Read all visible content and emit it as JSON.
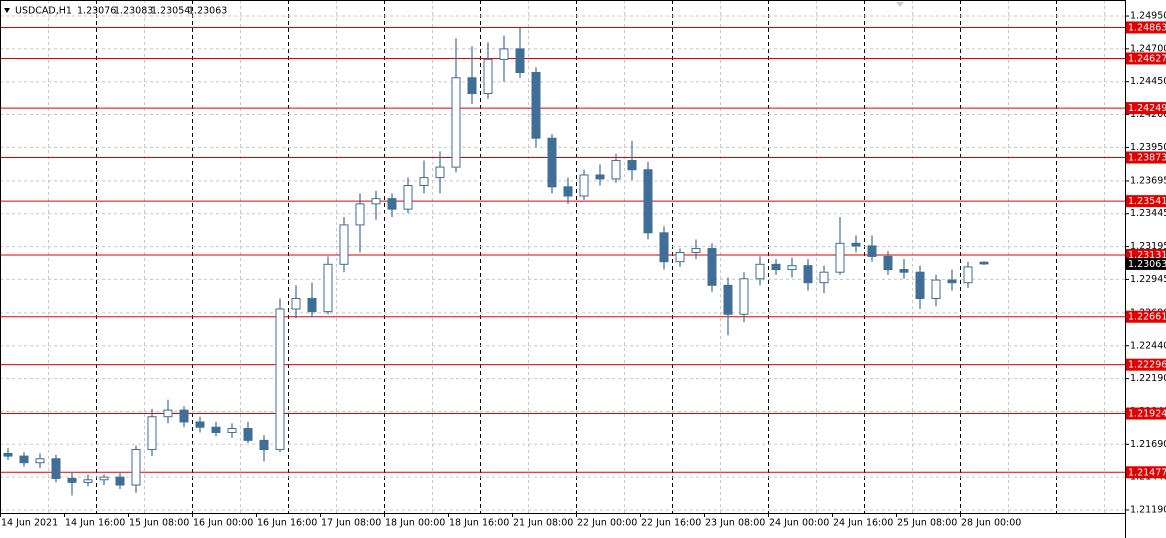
{
  "chart_data": {
    "type": "candlestick",
    "title": "USDCAD,H1",
    "categories": [
      "14 Jun 2021",
      null,
      null,
      null,
      "14 Jun 16:00",
      null,
      null,
      null,
      "15 Jun 08:00",
      null,
      null,
      null,
      "16 Jun 00:00",
      null,
      null,
      null,
      "16 Jun 16:00",
      null,
      null,
      null,
      "17 Jun 08:00",
      null,
      null,
      null,
      "18 Jun 00:00",
      null,
      null,
      null,
      "18 Jun 16:00",
      null,
      null,
      null,
      "21 Jun 08:00",
      null,
      null,
      null,
      "22 Jun 00:00",
      null,
      null,
      null,
      "22 Jun 16:00",
      null,
      null,
      null,
      "23 Jun 08:00",
      null,
      null,
      null,
      "24 Jun 00:00",
      null,
      null,
      null,
      "24 Jun 16:00",
      null,
      null,
      null,
      "25 Jun 08:00",
      null,
      null,
      null,
      "28 Jun 00:00",
      null
    ],
    "open": [
      1.2162,
      1.216,
      1.2155,
      1.2158,
      1.2143,
      1.214,
      1.2142,
      1.2144,
      1.2138,
      1.2165,
      1.219,
      1.2195,
      1.2186,
      1.2182,
      1.2178,
      1.2181,
      1.2172,
      1.2165,
      1.2272,
      1.228,
      1.227,
      1.2306,
      1.2336,
      1.2352,
      1.2356,
      1.2348,
      1.2366,
      1.2372,
      1.238,
      1.2448,
      1.2436,
      1.2462,
      1.247,
      1.2452,
      1.2402,
      1.2365,
      1.2358,
      1.2374,
      1.2371,
      1.2385,
      1.2378,
      1.233,
      1.2308,
      1.2315,
      1.2318,
      1.229,
      1.2268,
      1.2295,
      1.2306,
      1.2302,
      1.2305,
      1.2292,
      1.23,
      1.2322,
      1.232,
      1.2312,
      1.2302,
      1.23,
      1.228,
      1.2294,
      1.2292,
      1.23076
    ],
    "high": [
      1.2166,
      1.2163,
      1.2162,
      1.2161,
      1.2148,
      1.2146,
      1.2146,
      1.2148,
      1.2168,
      1.2196,
      1.2203,
      1.2198,
      1.219,
      1.2186,
      1.2185,
      1.2186,
      1.2176,
      1.228,
      1.229,
      1.2292,
      1.2312,
      1.2342,
      1.236,
      1.2362,
      1.236,
      1.2372,
      1.2385,
      1.2392,
      1.2478,
      1.2472,
      1.2475,
      1.248,
      1.2487,
      1.2456,
      1.2405,
      1.2372,
      1.2378,
      1.2382,
      1.239,
      1.24,
      1.2384,
      1.2335,
      1.2318,
      1.2325,
      1.2322,
      1.2296,
      1.23,
      1.2312,
      1.231,
      1.2311,
      1.231,
      1.2305,
      1.2342,
      1.2328,
      1.2328,
      1.2316,
      1.231,
      1.2305,
      1.2298,
      1.2302,
      1.2308,
      1.23083
    ],
    "low": [
      1.2157,
      1.2152,
      1.2151,
      1.214,
      1.213,
      1.2137,
      1.2138,
      1.2135,
      1.2132,
      1.216,
      1.2185,
      1.2182,
      1.2178,
      1.2175,
      1.2174,
      1.217,
      1.2156,
      1.2163,
      1.2265,
      1.2266,
      1.2268,
      1.23,
      1.2315,
      1.234,
      1.2342,
      1.2345,
      1.236,
      1.236,
      1.2376,
      1.2428,
      1.2432,
      1.2445,
      1.2448,
      1.2395,
      1.236,
      1.2352,
      1.2355,
      1.2366,
      1.2368,
      1.237,
      1.2325,
      1.2302,
      1.2304,
      1.231,
      1.2285,
      1.2252,
      1.2262,
      1.229,
      1.2298,
      1.2296,
      1.2286,
      1.2284,
      1.2298,
      1.2315,
      1.2308,
      1.2298,
      1.2295,
      1.2272,
      1.2274,
      1.2286,
      1.2288,
      1.23054
    ],
    "close": [
      1.216,
      1.2155,
      1.2158,
      1.2143,
      1.214,
      1.2142,
      1.2144,
      1.2138,
      1.2165,
      1.219,
      1.2195,
      1.2186,
      1.2182,
      1.2178,
      1.2181,
      1.2172,
      1.2165,
      1.2272,
      1.228,
      1.227,
      1.2306,
      1.2336,
      1.2352,
      1.2356,
      1.2348,
      1.2366,
      1.2372,
      1.238,
      1.2448,
      1.2436,
      1.2462,
      1.247,
      1.2452,
      1.2402,
      1.2365,
      1.2358,
      1.2374,
      1.2371,
      1.2385,
      1.2378,
      1.233,
      1.2308,
      1.2315,
      1.2318,
      1.229,
      1.2268,
      1.2295,
      1.2306,
      1.2302,
      1.2305,
      1.2292,
      1.23,
      1.2322,
      1.232,
      1.2312,
      1.2302,
      1.23,
      1.228,
      1.2294,
      1.2292,
      1.2304,
      1.23063
    ],
    "color": "#3f6f96",
    "levels": [
      1.24863,
      1.24627,
      1.24249,
      1.23873,
      1.23541,
      1.23131,
      1.22661,
      1.22296,
      1.21924,
      1.21477
    ],
    "level_color": "#e00000",
    "ylim": [
      1.21167,
      1.25072
    ],
    "yticks": [
      {
        "value": 1.2495,
        "label": "1.24950"
      },
      {
        "value": 1.247,
        "label": "1.24700"
      },
      {
        "value": 1.2445,
        "label": "1.24450"
      },
      {
        "value": 1.242,
        "label": "1.24200"
      },
      {
        "value": 1.2395,
        "label": "1.23950"
      },
      1.23695,
      1.23445,
      1.23195,
      1.22945,
      {
        "value": 1.2269,
        "label": "1.22690"
      },
      {
        "value": 1.2244,
        "label": "1.22440"
      },
      {
        "value": 1.2219,
        "label": "1.22190"
      },
      {
        "value": 1.2194,
        "label": "1.21940"
      },
      {
        "value": 1.2169,
        "label": "1.21690"
      },
      {
        "value": 1.2144,
        "label": "1.21440"
      },
      {
        "value": 1.2119,
        "label": "1.21190"
      }
    ],
    "grid": true
  }
}
